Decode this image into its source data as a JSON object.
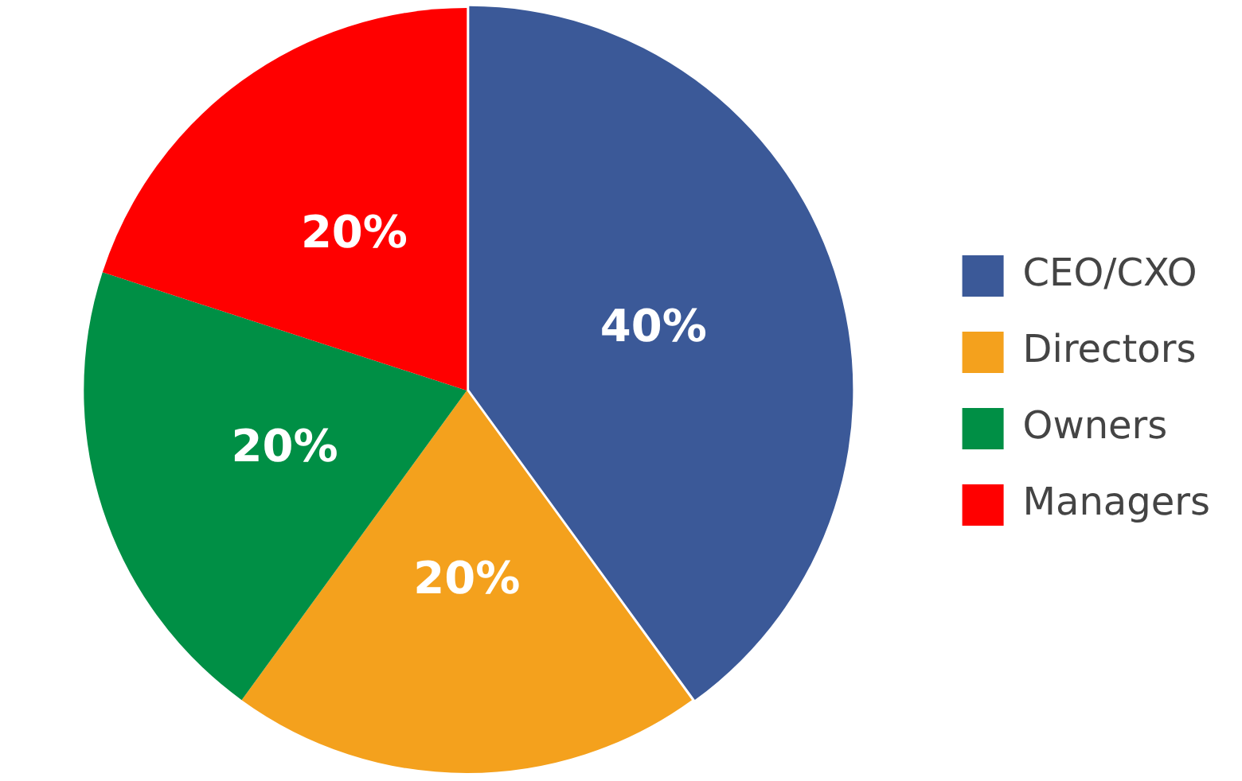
{
  "chart_data": {
    "type": "pie",
    "categories": [
      "CEO/CXO",
      "Directors",
      "Owners",
      "Managers"
    ],
    "values": [
      40,
      20,
      20,
      20
    ],
    "colors": [
      "#3b5998",
      "#f4a11d",
      "#008f45",
      "#ff0000"
    ],
    "value_labels": [
      "40%",
      "20%",
      "20%",
      "20%"
    ],
    "legend": "right"
  }
}
